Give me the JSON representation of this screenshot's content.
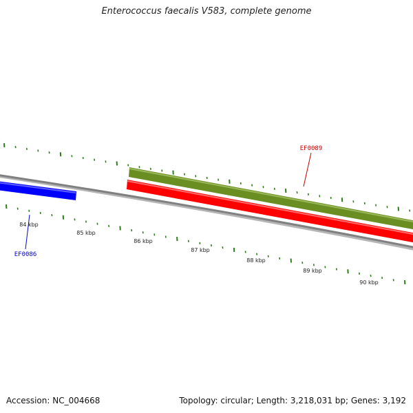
{
  "title": "Enterococcus faecalis V583, complete genome",
  "footer": {
    "accession": "Accession: NC_004668",
    "summary": "Topology: circular; Length: 3,218,031 bp; Genes: 3,192"
  },
  "colors": {
    "backbone": "#808080",
    "tick": "#2e7d1a",
    "forward_gene": "#6b8e23",
    "reverse_gene": "#ff0000",
    "neighbor_gene": "#0000ff",
    "label_red": "#cc0000",
    "label_blue": "#0000cc"
  },
  "view": {
    "unit": "kbp",
    "visible_range_kbp": [
      83.3,
      90.5
    ]
  },
  "ruler": {
    "labels": [
      "84 kbp",
      "85 kbp",
      "86 kbp",
      "87 kbp",
      "88 kbp",
      "89 kbp",
      "90 kbp"
    ]
  },
  "genes": [
    {
      "name": "EF0086",
      "strand": "-",
      "color": "neighbor_gene",
      "label_color": "label_blue"
    },
    {
      "name": "",
      "strand": "+",
      "color": "forward_gene"
    },
    {
      "name": "EF0089",
      "strand": "-",
      "color": "reverse_gene",
      "label_color": "label_red"
    }
  ]
}
